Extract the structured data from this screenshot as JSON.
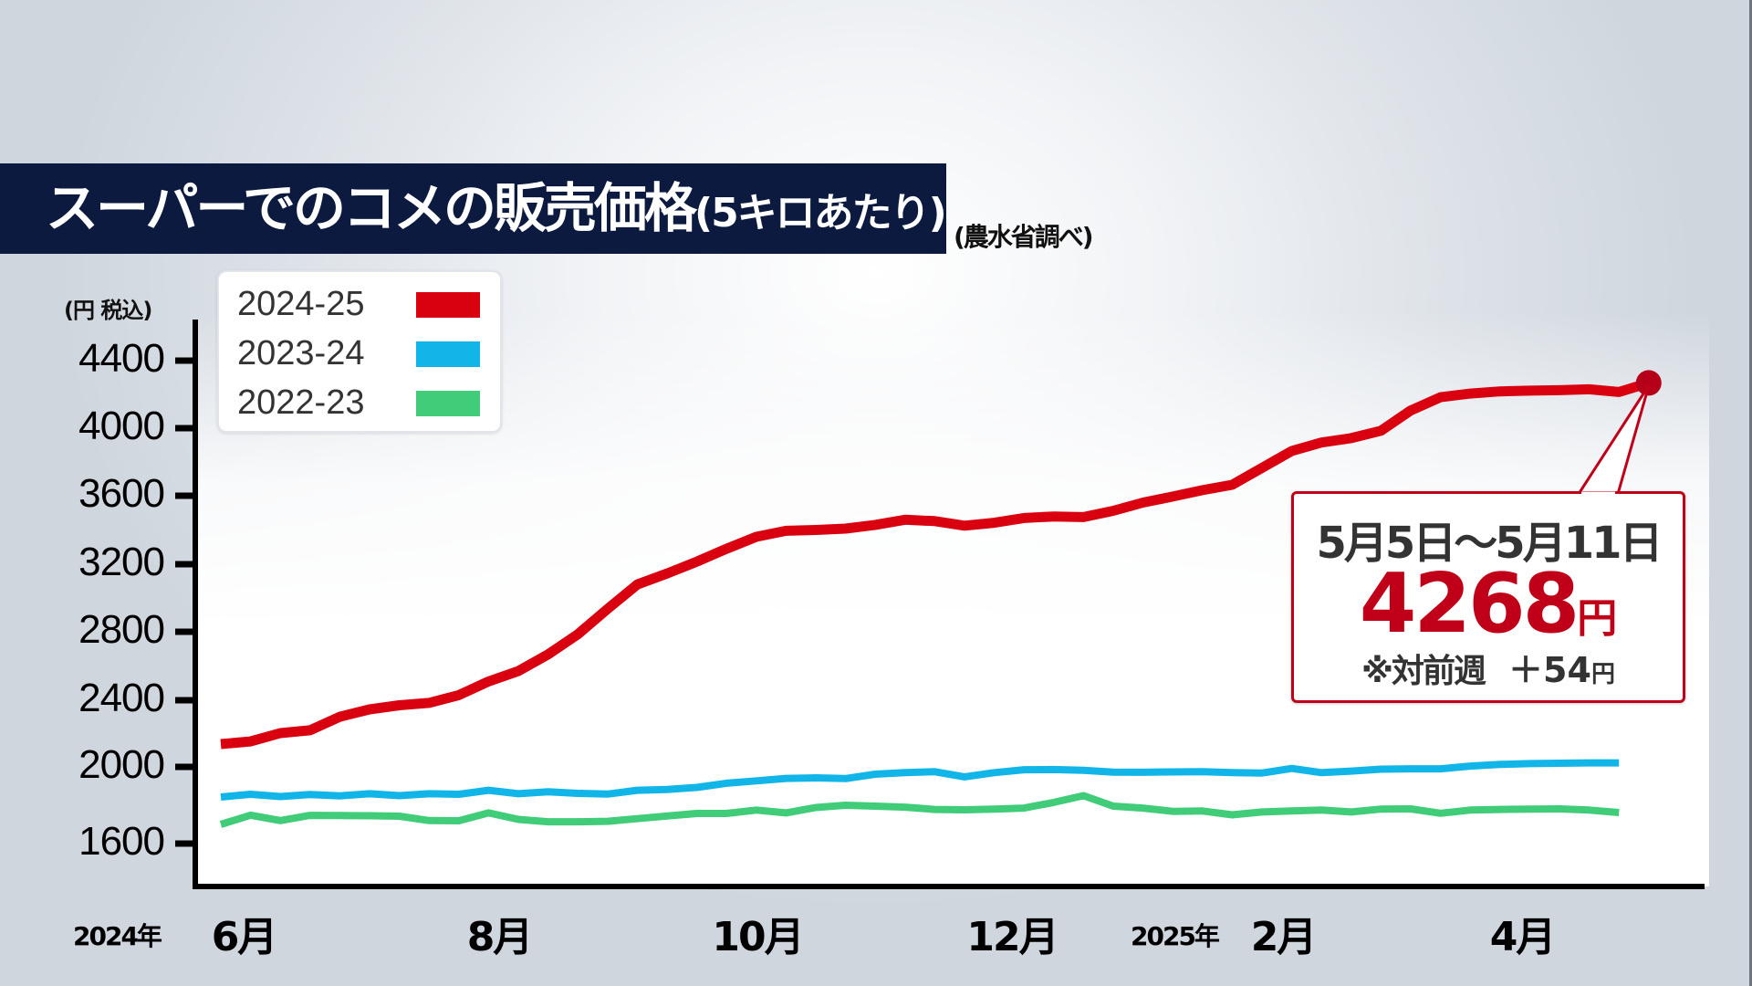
{
  "title": {
    "main": "スーパーでのコメの販売価格",
    "sub": "(5キロあたり)",
    "source": "(農水省調べ)"
  },
  "axis": {
    "unit_label": "(円 税込)",
    "y_ticks": [
      "4400",
      "4000",
      "3600",
      "3200",
      "2800",
      "2400",
      "2000",
      "1600"
    ],
    "x_labels": [
      {
        "year": "2024年",
        "label": "6月"
      },
      {
        "year": "",
        "label": "8月"
      },
      {
        "year": "",
        "label": "10月"
      },
      {
        "year": "",
        "label": "12月"
      },
      {
        "year": "2025年",
        "label": "2月"
      },
      {
        "year": "",
        "label": "4月"
      }
    ]
  },
  "legend": [
    {
      "label": "2024-25",
      "color": "#d9000f"
    },
    {
      "label": "2023-24",
      "color": "#12b5e8"
    },
    {
      "label": "2022-23",
      "color": "#40cc78"
    }
  ],
  "callout": {
    "date_range": "5月5日〜5月11日",
    "price": "4268",
    "price_unit": "円",
    "diff_label": "※対前週",
    "diff_value": "＋54",
    "diff_unit": "円"
  },
  "chart_data": {
    "type": "line",
    "title": "スーパーでのコメの販売価格(5キロあたり)",
    "subtitle": "(農水省調べ)",
    "xlabel": "",
    "ylabel": "(円 税込)",
    "ylim": [
      1500,
      4450
    ],
    "y_ticks": [
      1600,
      2000,
      2400,
      2800,
      3200,
      3600,
      4000,
      4400
    ],
    "x_tick_labels": [
      "2024年 6月",
      "8月",
      "10月",
      "12月",
      "2025年 2月",
      "4月"
    ],
    "x_unit": "week (June to mid-May)",
    "grid": false,
    "legend_position": "top-left",
    "series": [
      {
        "name": "2024-25",
        "color": "#d9000f",
        "values": [
          2137,
          2153,
          2203,
          2220,
          2301,
          2345,
          2370,
          2384,
          2430,
          2510,
          2570,
          2668,
          2785,
          2935,
          3080,
          3145,
          3215,
          3290,
          3360,
          3395,
          3400,
          3408,
          3430,
          3460,
          3452,
          3425,
          3442,
          3470,
          3479,
          3475,
          3512,
          3560,
          3595,
          3633,
          3665,
          3765,
          3865,
          3915,
          3941,
          3985,
          4105,
          4183,
          4205,
          4218,
          4222,
          4225,
          4230,
          4214,
          4268
        ]
      },
      {
        "name": "2023-24",
        "color": "#12b5e8",
        "values": [
          1843,
          1857,
          1845,
          1856,
          1849,
          1860,
          1850,
          1860,
          1857,
          1878,
          1860,
          1870,
          1862,
          1858,
          1878,
          1882,
          1893,
          1915,
          1927,
          1940,
          1943,
          1939,
          1962,
          1970,
          1975,
          1948,
          1970,
          1985,
          1986,
          1982,
          1973,
          1972,
          1974,
          1975,
          1970,
          1968,
          1992,
          1970,
          1978,
          1988,
          1990,
          1990,
          2005,
          2015,
          2020,
          2022,
          2024,
          2024
        ]
      },
      {
        "name": "2022-23",
        "color": "#40cc78",
        "values": [
          1700,
          1748,
          1720,
          1747,
          1746,
          1745,
          1743,
          1720,
          1719,
          1760,
          1726,
          1714,
          1714,
          1716,
          1730,
          1744,
          1757,
          1757,
          1775,
          1760,
          1788,
          1800,
          1795,
          1790,
          1778,
          1776,
          1780,
          1785,
          1815,
          1850,
          1795,
          1785,
          1768,
          1770,
          1750,
          1765,
          1770,
          1775,
          1765,
          1780,
          1781,
          1758,
          1775,
          1778,
          1780,
          1781,
          1775,
          1762
        ]
      }
    ],
    "annotations": [
      {
        "text": "5月5日〜5月11日 4268円 ※対前週 ＋54円",
        "target_series": "2024-25",
        "target_index": 48
      }
    ]
  }
}
